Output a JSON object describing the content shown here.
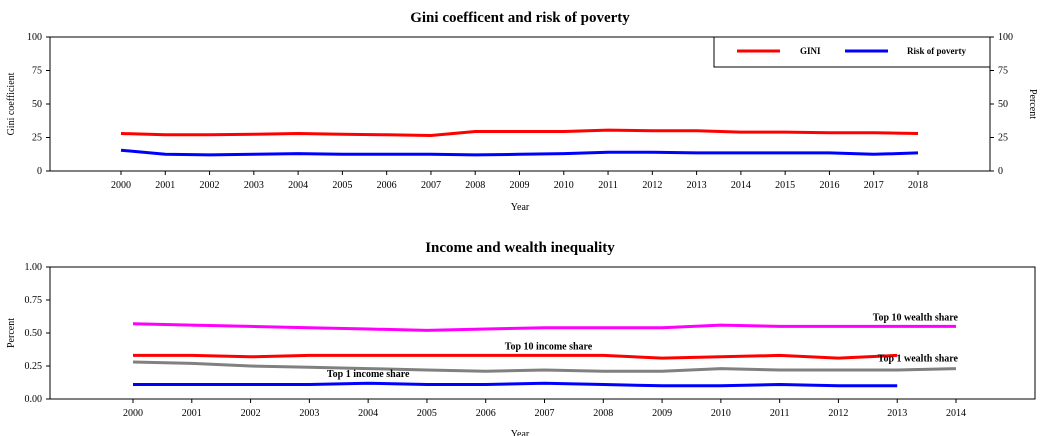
{
  "chart_data": [
    {
      "type": "line",
      "title": "Gini coefficent and risk of poverty",
      "xlabel": "Year",
      "ylabel": "Gini coefficient",
      "ylabel_right": "Percent",
      "x": [
        2000,
        2001,
        2002,
        2003,
        2004,
        2005,
        2006,
        2007,
        2008,
        2009,
        2010,
        2011,
        2012,
        2013,
        2014,
        2015,
        2016,
        2017,
        2018
      ],
      "ylim": [
        0,
        100
      ],
      "yticks": [
        0,
        25,
        50,
        75,
        100
      ],
      "grid": false,
      "legend": "top-right",
      "series": [
        {
          "name": "GINI",
          "color": "#ff0000",
          "values": [
            28,
            27,
            27,
            27.5,
            28,
            27.5,
            27,
            26.5,
            29.5,
            29.5,
            29.5,
            30.5,
            30,
            30,
            29,
            29,
            28.5,
            28.5,
            28
          ]
        },
        {
          "name": "Risk of poverty",
          "color": "#0000ff",
          "values": [
            15.5,
            12.5,
            12,
            12.5,
            13,
            12.5,
            12.5,
            12.5,
            12,
            12.5,
            13,
            14,
            14,
            13.5,
            13.5,
            13.5,
            13.5,
            12.5,
            13.5
          ]
        }
      ]
    },
    {
      "type": "line",
      "title": "Income and wealth inequality",
      "xlabel": "Year",
      "ylabel": "Percent",
      "x": [
        2000,
        2001,
        2002,
        2003,
        2004,
        2005,
        2006,
        2007,
        2008,
        2009,
        2010,
        2011,
        2012,
        2013,
        2014
      ],
      "ylim": [
        0,
        1
      ],
      "yticks": [
        "0.00",
        "0.25",
        "0.50",
        "0.75",
        "1.00"
      ],
      "grid": false,
      "series": [
        {
          "name": "Top 10 wealth share",
          "color": "#ff00ff",
          "values": [
            0.57,
            0.56,
            0.55,
            0.54,
            0.53,
            0.52,
            0.53,
            0.54,
            0.54,
            0.54,
            0.56,
            0.55,
            0.55,
            0.55,
            0.55
          ]
        },
        {
          "name": "Top 10 income share",
          "color": "#ff0000",
          "values": [
            0.33,
            0.33,
            0.32,
            0.33,
            0.33,
            0.33,
            0.33,
            0.33,
            0.33,
            0.31,
            0.32,
            0.33,
            0.31,
            0.33,
            null
          ]
        },
        {
          "name": "Top 1 wealth share",
          "color": "#808080",
          "values": [
            0.28,
            0.27,
            0.25,
            0.24,
            0.23,
            0.22,
            0.21,
            0.22,
            0.21,
            0.21,
            0.23,
            0.22,
            0.22,
            0.22,
            0.23
          ]
        },
        {
          "name": "Top 1 income share",
          "color": "#0000ff",
          "values": [
            0.11,
            0.11,
            0.11,
            0.11,
            0.12,
            0.11,
            0.11,
            0.12,
            0.11,
            0.1,
            0.1,
            0.11,
            0.1,
            0.1,
            null
          ]
        }
      ]
    }
  ]
}
